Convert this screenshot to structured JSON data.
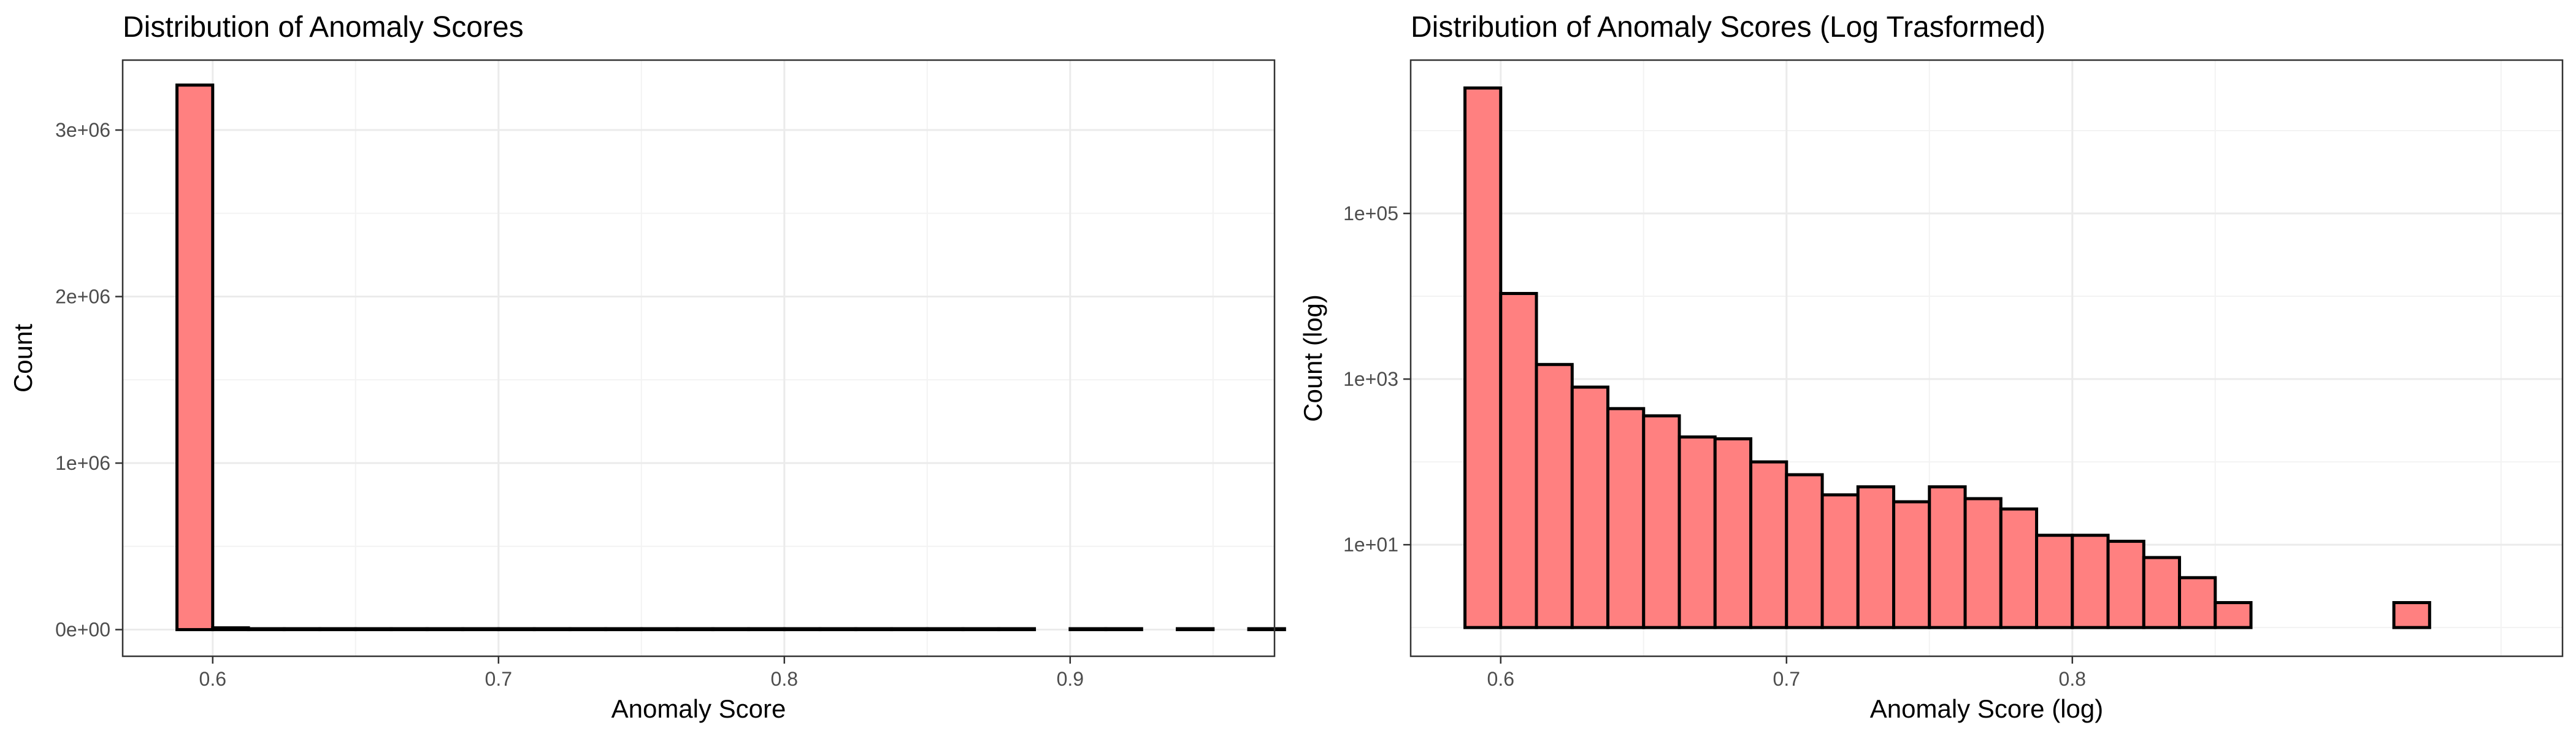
{
  "chart_data": [
    {
      "type": "bar",
      "title": "Distribution of Anomaly Scores",
      "xlabel": "Anomaly Score",
      "ylabel": "Count",
      "fill_color": "#FF8080",
      "edge_color": "#000000",
      "grid": true,
      "y_scale": "linear",
      "xlim": [
        0.5685,
        0.9715
      ],
      "ylim": [
        -160000,
        3420000
      ],
      "x_ticks": [
        0.6,
        0.7,
        0.8,
        0.9
      ],
      "x_tick_labels": [
        "0.6",
        "0.7",
        "0.8",
        "0.9"
      ],
      "y_ticks": [
        0,
        1000000,
        2000000,
        3000000
      ],
      "y_tick_labels": [
        "0e+00",
        "1e+06",
        "2e+06",
        "3e+06"
      ],
      "bin_width": 0.0125,
      "bins_start": 0.5875,
      "bin_counts": [
        3270000,
        10800,
        1500,
        800,
        440,
        360,
        200,
        190,
        100,
        70,
        40,
        50,
        33,
        50,
        36,
        27,
        13,
        13,
        11,
        7,
        4,
        2,
        1,
        1,
        0,
        1,
        2,
        0,
        1,
        0,
        1
      ]
    },
    {
      "type": "bar",
      "title": "Distribution of Anomaly Scores (Log Trasformed)",
      "xlabel": "Anomaly Score (log)",
      "ylabel": "Count (log)",
      "fill_color": "#FF8080",
      "edge_color": "#000000",
      "grid": true,
      "y_scale": "log10",
      "xlim": [
        0.5685,
        0.9715
      ],
      "ylim": [
        0.45,
        7100000
      ],
      "baseline": 1,
      "x_ticks": [
        0.6,
        0.7,
        0.8
      ],
      "x_tick_labels": [
        "0.6",
        "0.7",
        "0.8"
      ],
      "y_ticks": [
        10,
        1000,
        100000
      ],
      "y_tick_labels": [
        "1e+01",
        "1e+03",
        "1e+05"
      ],
      "bin_width": 0.0125,
      "bins_start": 0.5875,
      "bin_counts": [
        3270000,
        10800,
        1500,
        800,
        440,
        360,
        200,
        190,
        100,
        70,
        40,
        50,
        33,
        50,
        36,
        27,
        13,
        13,
        11,
        7,
        4,
        2,
        1,
        1,
        0,
        1,
        2,
        0,
        1,
        0,
        1
      ]
    }
  ]
}
